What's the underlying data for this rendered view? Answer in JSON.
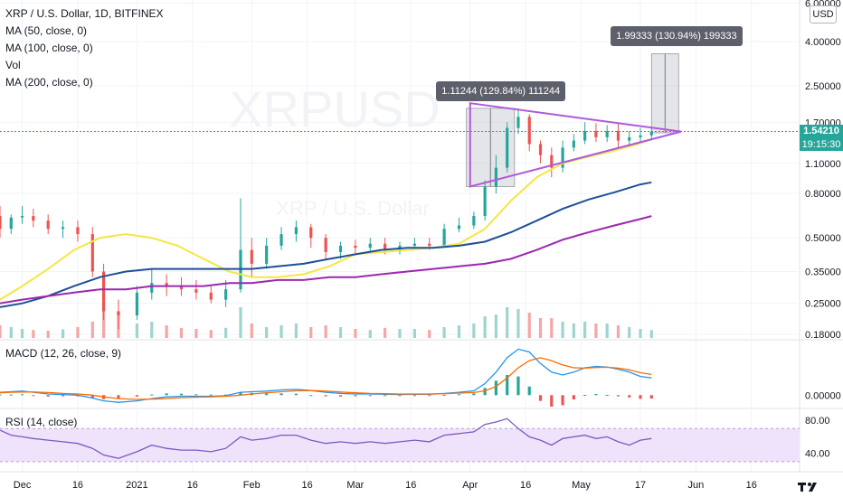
{
  "header": {
    "symbol_line": "XRP / U.S. Dollar, 1D, BITFINEX",
    "indicators": [
      "MA (50, close, 0)",
      "MA (100, close, 0)",
      "Vol",
      "MA (200, close, 0)"
    ],
    "currency": "USD",
    "watermark": "XRPUSD",
    "watermark_sub": "XRP / U.S. Dollar"
  },
  "price_axis": {
    "labels": [
      "6.00000",
      "4.00000",
      "2.50000",
      "1.70000",
      "1.10000",
      "0.80000",
      "0.50000",
      "0.35000",
      "0.25000",
      "0.18000"
    ],
    "values": [
      6.0,
      4.0,
      2.5,
      1.7,
      1.1,
      0.8,
      0.5,
      0.35,
      0.25,
      0.18
    ],
    "last_price": "1.54210",
    "countdown": "19:15:30"
  },
  "time_axis": {
    "labels": [
      "Dec",
      "16",
      "2021",
      "16",
      "Feb",
      "16",
      "Mar",
      "16",
      "Apr",
      "16",
      "May",
      "17",
      "Jun",
      "16"
    ],
    "label_dates": [
      "2020-12-01",
      "2020-12-16",
      "2021-01-01",
      "2021-01-16",
      "2021-02-01",
      "2021-02-16",
      "2021-03-01",
      "2021-03-16",
      "2021-04-01",
      "2021-04-16",
      "2021-05-01",
      "2021-05-17",
      "2021-06-01",
      "2021-06-16"
    ]
  },
  "measurements": [
    {
      "label": "1.11244 (129.84%) 111244",
      "from_date": "2021-03-31",
      "to_date": "2021-04-13",
      "from_price": 0.86,
      "to_price": 1.97
    },
    {
      "label": "1.99333 (130.94%) 199333",
      "from_date": "2021-05-20",
      "to_date": "2021-05-22",
      "from_price": 1.52,
      "to_price": 3.51
    }
  ],
  "triangle": {
    "upper": [
      {
        "date": "2021-04-01",
        "price": 2.08
      },
      {
        "date": "2021-05-28",
        "price": 1.54
      }
    ],
    "lower": [
      {
        "date": "2021-04-01",
        "price": 0.86
      },
      {
        "date": "2021-05-28",
        "price": 1.54
      }
    ]
  },
  "macd": {
    "label": "MACD (12, 26, close, 9)",
    "axis_label": "0.00000"
  },
  "rsi": {
    "label": "RSI (14, close)",
    "axis_labels": [
      "80.00",
      "40.00"
    ],
    "axis_values": [
      80,
      40
    ],
    "band": [
      30,
      70
    ]
  },
  "colors": {
    "up": "#26a69a",
    "down": "#ef5350",
    "ma50": "#f5e642",
    "ma100": "#1e4f9b",
    "ma200": "#9c27b0",
    "triangle": "#b05ad9",
    "macd_line": "#2196f3",
    "signal_line": "#ff6d00",
    "rsi_line": "#7e57c2",
    "rsi_band": "#efe3fb"
  },
  "chart_data": {
    "type": "line",
    "title": "XRP / U.S. Dollar, 1D, BITFINEX",
    "xlabel": "",
    "ylabel": "",
    "scale": "log",
    "ylim": [
      0.17,
      6.2
    ],
    "xlim": [
      "2020-11-25",
      "2021-06-29"
    ],
    "grid": true,
    "x": [
      "2020-11-25",
      "2020-12-01",
      "2020-12-08",
      "2020-12-15",
      "2020-12-22",
      "2020-12-29",
      "2021-01-05",
      "2021-01-12",
      "2021-01-19",
      "2021-01-26",
      "2021-02-01",
      "2021-02-08",
      "2021-02-15",
      "2021-02-22",
      "2021-03-01",
      "2021-03-08",
      "2021-03-15",
      "2021-03-22",
      "2021-03-29",
      "2021-04-05",
      "2021-04-12",
      "2021-04-19",
      "2021-04-26",
      "2021-05-03",
      "2021-05-10",
      "2021-05-17",
      "2021-05-20"
    ],
    "series": [
      {
        "name": "MA (50, close, 0)",
        "values": [
          0.26,
          0.3,
          0.36,
          0.44,
          0.5,
          0.52,
          0.5,
          0.46,
          0.4,
          0.35,
          0.33,
          0.33,
          0.34,
          0.37,
          0.42,
          0.43,
          0.44,
          0.45,
          0.47,
          0.55,
          0.74,
          0.95,
          1.1,
          1.18,
          1.26,
          1.36,
          1.42
        ]
      },
      {
        "name": "MA (100, close, 0)",
        "values": [
          0.24,
          0.25,
          0.27,
          0.3,
          0.33,
          0.35,
          0.36,
          0.36,
          0.36,
          0.36,
          0.36,
          0.37,
          0.38,
          0.4,
          0.42,
          0.44,
          0.45,
          0.45,
          0.46,
          0.48,
          0.53,
          0.6,
          0.68,
          0.75,
          0.81,
          0.88,
          0.9
        ]
      },
      {
        "name": "MA (200, close, 0)",
        "values": [
          0.25,
          0.26,
          0.27,
          0.28,
          0.29,
          0.29,
          0.3,
          0.3,
          0.3,
          0.31,
          0.31,
          0.32,
          0.32,
          0.33,
          0.33,
          0.34,
          0.35,
          0.36,
          0.37,
          0.38,
          0.4,
          0.44,
          0.49,
          0.53,
          0.57,
          0.61,
          0.63
        ]
      }
    ],
    "candles": {
      "dates": [
        "2020-11-25",
        "2020-11-28",
        "2020-12-01",
        "2020-12-04",
        "2020-12-08",
        "2020-12-12",
        "2020-12-16",
        "2020-12-20",
        "2020-12-23",
        "2020-12-27",
        "2021-01-01",
        "2021-01-05",
        "2021-01-09",
        "2021-01-13",
        "2021-01-17",
        "2021-01-21",
        "2021-01-25",
        "2021-01-29",
        "2021-02-01",
        "2021-02-05",
        "2021-02-09",
        "2021-02-13",
        "2021-02-17",
        "2021-02-21",
        "2021-02-25",
        "2021-03-01",
        "2021-03-05",
        "2021-03-09",
        "2021-03-13",
        "2021-03-17",
        "2021-03-21",
        "2021-03-25",
        "2021-03-29",
        "2021-04-02",
        "2021-04-05",
        "2021-04-08",
        "2021-04-11",
        "2021-04-14",
        "2021-04-17",
        "2021-04-20",
        "2021-04-23",
        "2021-04-26",
        "2021-04-29",
        "2021-05-02",
        "2021-05-05",
        "2021-05-08",
        "2021-05-11",
        "2021-05-14",
        "2021-05-17",
        "2021-05-20"
      ],
      "open": [
        0.63,
        0.55,
        0.62,
        0.63,
        0.6,
        0.55,
        0.56,
        0.52,
        0.35,
        0.23,
        0.22,
        0.28,
        0.31,
        0.3,
        0.29,
        0.28,
        0.26,
        0.29,
        0.44,
        0.38,
        0.46,
        0.52,
        0.56,
        0.5,
        0.43,
        0.46,
        0.45,
        0.47,
        0.44,
        0.46,
        0.47,
        0.46,
        0.55,
        0.57,
        0.63,
        0.86,
        1.05,
        1.6,
        1.8,
        1.35,
        1.2,
        1.05,
        1.3,
        1.4,
        1.55,
        1.45,
        1.55,
        1.4,
        1.45,
        1.48
      ],
      "close": [
        0.55,
        0.62,
        0.63,
        0.6,
        0.55,
        0.56,
        0.52,
        0.35,
        0.23,
        0.22,
        0.28,
        0.31,
        0.3,
        0.29,
        0.28,
        0.26,
        0.29,
        0.44,
        0.38,
        0.46,
        0.52,
        0.56,
        0.5,
        0.43,
        0.46,
        0.45,
        0.47,
        0.44,
        0.46,
        0.47,
        0.46,
        0.55,
        0.57,
        0.63,
        0.86,
        1.05,
        1.6,
        1.8,
        1.35,
        1.2,
        1.05,
        1.3,
        1.4,
        1.55,
        1.45,
        1.55,
        1.4,
        1.45,
        1.48,
        1.54
      ],
      "high": [
        0.7,
        0.64,
        0.7,
        0.68,
        0.64,
        0.6,
        0.6,
        0.56,
        0.38,
        0.26,
        0.3,
        0.36,
        0.34,
        0.33,
        0.32,
        0.3,
        0.32,
        0.76,
        0.5,
        0.5,
        0.56,
        0.6,
        0.58,
        0.52,
        0.48,
        0.49,
        0.5,
        0.5,
        0.48,
        0.5,
        0.5,
        0.58,
        0.62,
        0.66,
        0.92,
        1.2,
        1.7,
        1.97,
        1.85,
        1.4,
        1.3,
        1.4,
        1.5,
        1.7,
        1.68,
        1.65,
        1.68,
        1.55,
        1.6,
        1.6
      ],
      "low": [
        0.5,
        0.52,
        0.58,
        0.56,
        0.52,
        0.5,
        0.48,
        0.33,
        0.21,
        0.19,
        0.21,
        0.26,
        0.27,
        0.27,
        0.26,
        0.25,
        0.24,
        0.28,
        0.33,
        0.36,
        0.44,
        0.48,
        0.45,
        0.4,
        0.4,
        0.42,
        0.43,
        0.42,
        0.42,
        0.44,
        0.44,
        0.45,
        0.53,
        0.55,
        0.6,
        0.8,
        1.0,
        1.5,
        1.25,
        1.1,
        0.95,
        1.0,
        1.25,
        1.35,
        1.38,
        1.38,
        1.3,
        1.3,
        1.36,
        1.4
      ]
    },
    "volume_relative": [
      0.35,
      0.3,
      0.25,
      0.22,
      0.2,
      0.24,
      0.3,
      0.45,
      0.95,
      0.7,
      0.4,
      0.45,
      0.35,
      0.28,
      0.25,
      0.22,
      0.28,
      0.85,
      0.4,
      0.3,
      0.35,
      0.4,
      0.3,
      0.35,
      0.3,
      0.25,
      0.22,
      0.28,
      0.25,
      0.25,
      0.22,
      0.3,
      0.35,
      0.4,
      0.6,
      0.65,
      0.85,
      0.8,
      0.7,
      0.55,
      0.55,
      0.45,
      0.4,
      0.45,
      0.4,
      0.4,
      0.35,
      0.3,
      0.25,
      0.22
    ],
    "macd_line": [
      0.01,
      0.012,
      0.014,
      0.01,
      0.004,
      0.002,
      0.0,
      -0.01,
      -0.02,
      -0.025,
      -0.02,
      -0.012,
      -0.006,
      -0.004,
      -0.004,
      -0.004,
      -0.002,
      0.01,
      0.012,
      0.014,
      0.018,
      0.02,
      0.016,
      0.01,
      0.006,
      0.004,
      0.004,
      0.003,
      0.002,
      0.003,
      0.003,
      0.006,
      0.01,
      0.015,
      0.04,
      0.08,
      0.13,
      0.16,
      0.15,
      0.11,
      0.08,
      0.07,
      0.08,
      0.095,
      0.1,
      0.098,
      0.09,
      0.08,
      0.065,
      0.06
    ],
    "signal_line": [
      0.008,
      0.01,
      0.011,
      0.011,
      0.009,
      0.006,
      0.004,
      0.0,
      -0.006,
      -0.012,
      -0.015,
      -0.014,
      -0.012,
      -0.009,
      -0.007,
      -0.006,
      -0.004,
      0.0,
      0.004,
      0.008,
      0.012,
      0.015,
      0.016,
      0.014,
      0.011,
      0.008,
      0.006,
      0.005,
      0.004,
      0.004,
      0.004,
      0.005,
      0.007,
      0.009,
      0.015,
      0.03,
      0.06,
      0.095,
      0.12,
      0.13,
      0.12,
      0.105,
      0.095,
      0.094,
      0.096,
      0.097,
      0.094,
      0.088,
      0.078,
      0.072
    ],
    "rsi": [
      68,
      62,
      60,
      58,
      56,
      54,
      52,
      46,
      38,
      34,
      42,
      50,
      46,
      44,
      44,
      42,
      46,
      60,
      56,
      58,
      62,
      62,
      56,
      52,
      54,
      52,
      54,
      52,
      54,
      56,
      54,
      62,
      64,
      66,
      75,
      78,
      82,
      70,
      60,
      56,
      50,
      58,
      60,
      62,
      58,
      60,
      54,
      50,
      56,
      58
    ]
  }
}
